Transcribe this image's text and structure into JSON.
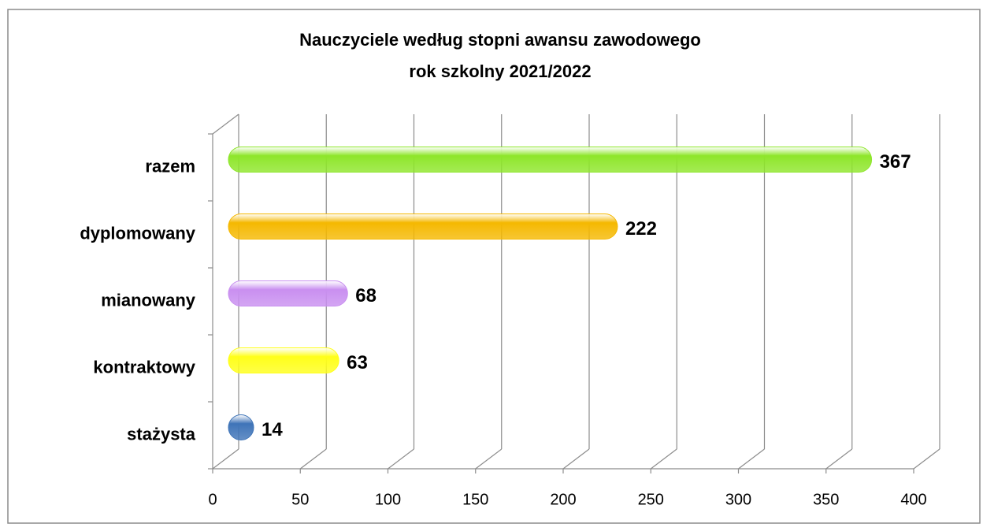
{
  "chart_data": {
    "type": "bar",
    "orientation": "horizontal",
    "title": "Nauczyciele według stopni awansu zawodowego",
    "subtitle": "rok szkolny 2021/2022",
    "categories": [
      "razem",
      "dyplomowany",
      "mianowany",
      "kontraktowy",
      "stażysta"
    ],
    "values": [
      367,
      222,
      68,
      63,
      14
    ],
    "colors": [
      "#8ee62a",
      "#f5b800",
      "#c98ff0",
      "#ffff19",
      "#3f74b8"
    ],
    "xlim": [
      0,
      400
    ],
    "xticks": [
      0,
      50,
      100,
      150,
      200,
      250,
      300,
      350,
      400
    ],
    "grid": true
  }
}
